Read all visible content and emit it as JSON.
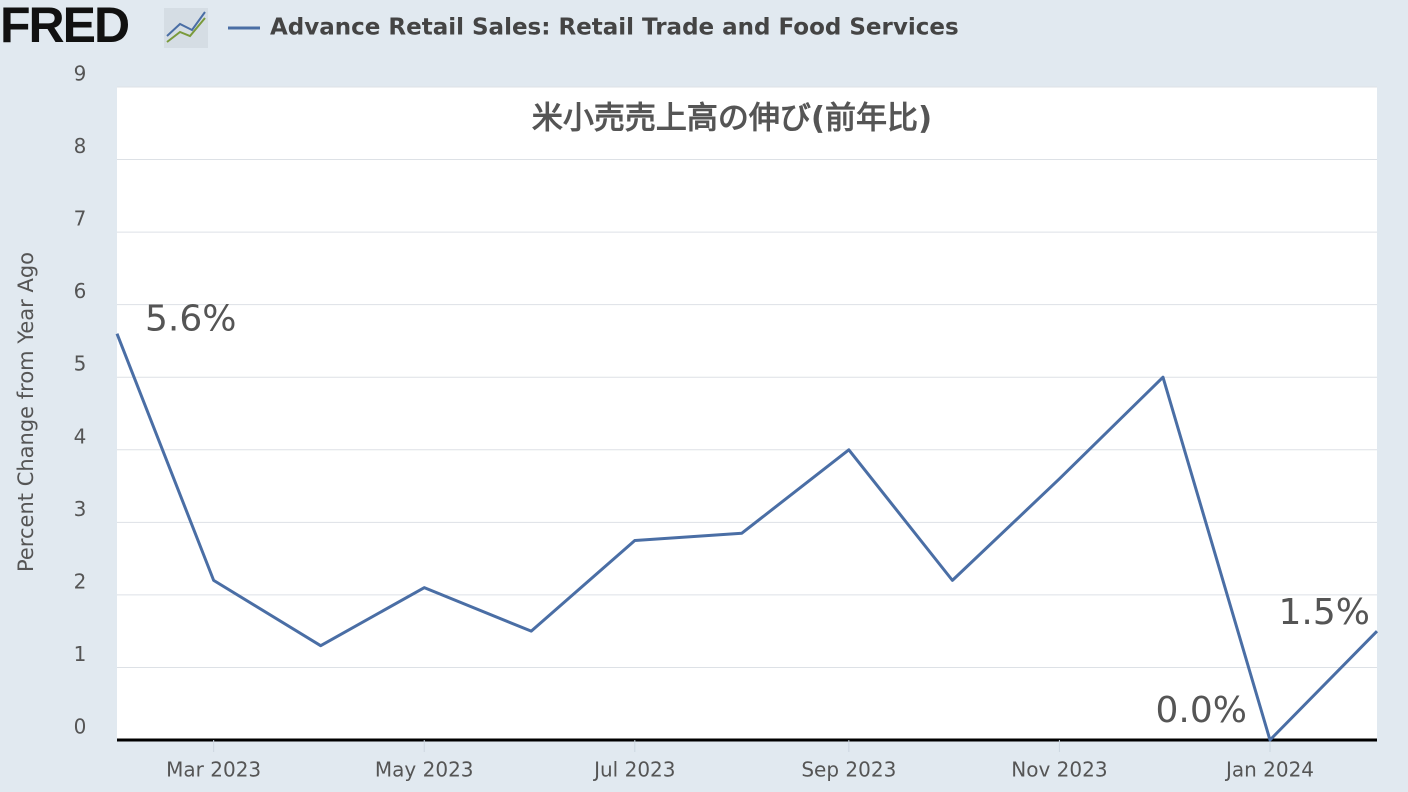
{
  "header": {
    "logo": "FRED"
  },
  "chart_data": {
    "type": "line",
    "title": "米小売売上高の伸び(前年比)",
    "y_label": "Percent Change from Year Ago",
    "x": [
      "2023-02",
      "2023-03",
      "2023-04",
      "2023-05",
      "2023-06",
      "2023-07",
      "2023-08",
      "2023-09",
      "2023-10",
      "2023-11",
      "2023-12",
      "2024-01",
      "2024-02"
    ],
    "series": [
      {
        "name": "Advance Retail Sales: Retail Trade and Food Services",
        "color": "#4a6ea5",
        "values": [
          5.6,
          2.2,
          1.3,
          2.1,
          1.5,
          2.75,
          2.85,
          4.0,
          2.2,
          3.6,
          5.0,
          0.0,
          1.5
        ],
        "value_labels": [
          "5.6%",
          null,
          null,
          null,
          null,
          null,
          null,
          null,
          null,
          null,
          null,
          "0.0%",
          "1.5%"
        ]
      }
    ],
    "xlim": [
      "2023-02",
      "2024-02"
    ],
    "xticks": [
      {
        "value": "2023-03",
        "label": "Mar 2023"
      },
      {
        "value": "2023-05",
        "label": "May 2023"
      },
      {
        "value": "2023-07",
        "label": "Jul 2023"
      },
      {
        "value": "2023-09",
        "label": "Sep 2023"
      },
      {
        "value": "2023-11",
        "label": "Nov 2023"
      },
      {
        "value": "2024-01",
        "label": "Jan 2024"
      }
    ],
    "ylim": [
      0,
      9
    ],
    "yticks": [
      0,
      1,
      2,
      3,
      4,
      5,
      6,
      7,
      8,
      9
    ],
    "grid": true
  }
}
